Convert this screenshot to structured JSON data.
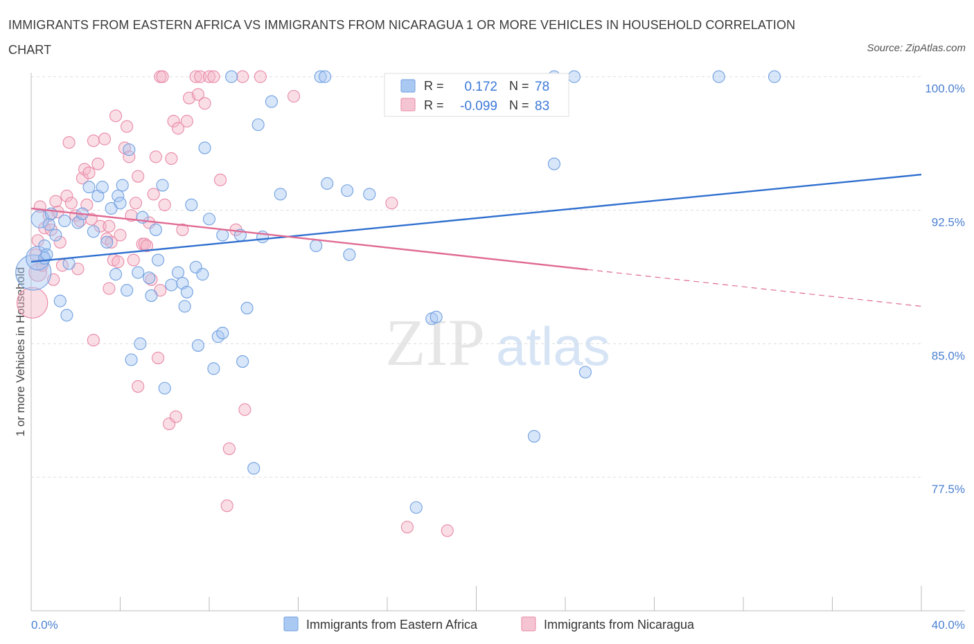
{
  "title": "IMMIGRANTS FROM EASTERN AFRICA VS IMMIGRANTS FROM NICARAGUA 1 OR MORE VEHICLES IN HOUSEHOLD CORRELATION CHART",
  "source": "Source: ZipAtlas.com",
  "watermark": {
    "zip": "ZIP",
    "atlas": "atlas"
  },
  "colors": {
    "blue_fill": "#a9c8f2",
    "blue_stroke": "#6f9fe0",
    "blue_line": "#2f6fcf",
    "pink_fill": "#f5b5c8",
    "pink_stroke": "#e888a6",
    "pink_line": "#e06a93",
    "tick_text": "#4a7fd0",
    "grid": "#dddddd"
  },
  "legend": {
    "rows": [
      {
        "r_label": "R =",
        "r_value": "0.172",
        "n_label": "N =",
        "n_value": "78",
        "color": "blue"
      },
      {
        "r_label": "R =",
        "r_value": "-0.099",
        "n_label": "N =",
        "n_value": "83",
        "color": "pink"
      }
    ]
  },
  "bottom_legend": [
    "Immigrants from Eastern Africa",
    "Immigrants from Nicaragua"
  ],
  "chart_data": {
    "type": "scatter",
    "title": "IMMIGRANTS FROM EASTERN AFRICA VS IMMIGRANTS FROM NICARAGUA 1 OR MORE VEHICLES IN HOUSEHOLD CORRELATION CHART",
    "xlabel": "",
    "ylabel": "1 or more Vehicles in Household",
    "xlim": [
      0,
      40
    ],
    "ylim": [
      70.0,
      101.0
    ],
    "x_tick_labels": [
      "0.0%",
      "40.0%"
    ],
    "y_ticks": [
      77.5,
      85.0,
      92.5,
      100.0
    ],
    "y_tick_labels": [
      "77.5%",
      "85.0%",
      "92.5%",
      "100.0%"
    ],
    "grid": true,
    "legend_position": "top-center",
    "series": [
      {
        "name": "Immigrants from Eastern Africa",
        "color": "blue",
        "trend": {
          "x": [
            0,
            40
          ],
          "y": [
            89.6,
            94.5
          ],
          "dashed_from": null
        },
        "points": [
          [
            0.1,
            89.0,
            3
          ],
          [
            0.3,
            89.8,
            2
          ],
          [
            0.4,
            92.0,
            1.5
          ],
          [
            0.6,
            90.5,
            1
          ],
          [
            0.6,
            89.8,
            1
          ],
          [
            0.8,
            91.7,
            1
          ],
          [
            0.9,
            92.3,
            1
          ],
          [
            1.1,
            91.1,
            1
          ],
          [
            1.3,
            87.4,
            1
          ],
          [
            1.6,
            86.6,
            1
          ],
          [
            1.7,
            89.5,
            1
          ],
          [
            1.5,
            91.9,
            1
          ],
          [
            2.1,
            91.8,
            1
          ],
          [
            2.3,
            92.3,
            1
          ],
          [
            2.6,
            93.8,
            1
          ],
          [
            2.8,
            91.3,
            1
          ],
          [
            3.0,
            93.3,
            1
          ],
          [
            3.2,
            93.8,
            1
          ],
          [
            3.4,
            90.7,
            1
          ],
          [
            3.6,
            92.6,
            1
          ],
          [
            3.8,
            88.9,
            1
          ],
          [
            3.9,
            93.3,
            1
          ],
          [
            4.0,
            92.9,
            1
          ],
          [
            4.1,
            93.9,
            1
          ],
          [
            4.3,
            88.0,
            1
          ],
          [
            4.4,
            95.9,
            1
          ],
          [
            4.5,
            84.1,
            1
          ],
          [
            4.8,
            89.0,
            1
          ],
          [
            4.9,
            85.0,
            1
          ],
          [
            5.0,
            92.1,
            1
          ],
          [
            5.3,
            88.7,
            1
          ],
          [
            5.4,
            87.7,
            1
          ],
          [
            5.6,
            91.4,
            1
          ],
          [
            5.7,
            89.7,
            1
          ],
          [
            5.9,
            93.9,
            1
          ],
          [
            6.0,
            82.5,
            1
          ],
          [
            6.3,
            88.3,
            1
          ],
          [
            6.6,
            89.0,
            1
          ],
          [
            6.8,
            88.4,
            1
          ],
          [
            6.9,
            87.1,
            1
          ],
          [
            7.0,
            87.9,
            1
          ],
          [
            7.2,
            92.8,
            1
          ],
          [
            7.4,
            89.3,
            1
          ],
          [
            7.5,
            84.9,
            1
          ],
          [
            7.7,
            88.9,
            1
          ],
          [
            7.8,
            96.0,
            1
          ],
          [
            8.0,
            92.0,
            1
          ],
          [
            8.2,
            83.6,
            1
          ],
          [
            8.4,
            85.4,
            1
          ],
          [
            8.6,
            85.6,
            1
          ],
          [
            8.6,
            91.1,
            1
          ],
          [
            9.0,
            100.0,
            1
          ],
          [
            9.4,
            91.1,
            1
          ],
          [
            9.5,
            84.0,
            1
          ],
          [
            9.7,
            87.0,
            1
          ],
          [
            10.0,
            78.0,
            1
          ],
          [
            10.2,
            97.3,
            1
          ],
          [
            10.4,
            91.0,
            1
          ],
          [
            10.8,
            98.6,
            1
          ],
          [
            11.2,
            93.4,
            1
          ],
          [
            12.8,
            90.5,
            1
          ],
          [
            13.0,
            100.0,
            1
          ],
          [
            13.2,
            100.0,
            1
          ],
          [
            13.3,
            94.0,
            1
          ],
          [
            14.2,
            93.6,
            1
          ],
          [
            14.3,
            90.0,
            1
          ],
          [
            15.2,
            93.4,
            1
          ],
          [
            17.3,
            75.8,
            1
          ],
          [
            18.0,
            86.4,
            1
          ],
          [
            18.2,
            86.5,
            1
          ],
          [
            22.6,
            79.8,
            1
          ],
          [
            23.5,
            95.1,
            1
          ],
          [
            23.5,
            100.0,
            1
          ],
          [
            24.4,
            100.0,
            1
          ],
          [
            24.9,
            83.4,
            1
          ],
          [
            30.9,
            100.0,
            1
          ],
          [
            33.4,
            100.0,
            1
          ],
          [
            0.7,
            90.0,
            1
          ]
        ]
      },
      {
        "name": "Immigrants from Nicaragua",
        "color": "pink",
        "trend": {
          "x": [
            0,
            40
          ],
          "y": [
            92.6,
            87.1
          ],
          "dashed_from": 25.0
        },
        "points": [
          [
            0.05,
            87.3,
            2.6
          ],
          [
            0.3,
            89.0,
            1.5
          ],
          [
            0.3,
            90.8,
            1
          ],
          [
            0.4,
            92.7,
            1
          ],
          [
            0.6,
            91.5,
            1
          ],
          [
            0.8,
            92.2,
            1
          ],
          [
            0.9,
            91.4,
            1
          ],
          [
            1.0,
            88.6,
            1
          ],
          [
            1.1,
            93.0,
            1
          ],
          [
            1.3,
            90.7,
            1
          ],
          [
            1.4,
            89.4,
            1
          ],
          [
            1.6,
            93.3,
            1
          ],
          [
            1.7,
            96.3,
            1
          ],
          [
            1.8,
            92.9,
            1
          ],
          [
            2.0,
            92.2,
            1
          ],
          [
            2.1,
            89.2,
            1
          ],
          [
            2.3,
            94.3,
            1
          ],
          [
            2.4,
            94.8,
            1
          ],
          [
            2.5,
            92.8,
            1
          ],
          [
            2.6,
            94.6,
            1
          ],
          [
            2.7,
            92.0,
            1
          ],
          [
            2.8,
            85.2,
            1
          ],
          [
            2.8,
            96.4,
            1
          ],
          [
            3.0,
            95.1,
            1
          ],
          [
            3.1,
            91.6,
            1
          ],
          [
            3.3,
            96.5,
            1
          ],
          [
            3.4,
            90.9,
            1
          ],
          [
            3.5,
            91.6,
            1
          ],
          [
            3.5,
            88.1,
            1
          ],
          [
            3.7,
            89.7,
            1
          ],
          [
            3.8,
            97.8,
            1
          ],
          [
            3.9,
            89.6,
            1
          ],
          [
            4.0,
            91.1,
            1
          ],
          [
            4.2,
            96.0,
            1
          ],
          [
            4.3,
            97.2,
            1
          ],
          [
            4.4,
            95.5,
            1
          ],
          [
            4.6,
            89.7,
            1
          ],
          [
            4.7,
            92.9,
            1
          ],
          [
            4.8,
            94.4,
            1
          ],
          [
            4.8,
            82.6,
            1
          ],
          [
            5.0,
            90.6,
            1
          ],
          [
            5.1,
            90.6,
            1
          ],
          [
            5.3,
            91.8,
            1
          ],
          [
            5.4,
            88.6,
            1
          ],
          [
            5.5,
            93.4,
            1
          ],
          [
            5.6,
            95.5,
            1
          ],
          [
            5.7,
            84.2,
            1
          ],
          [
            5.8,
            88.0,
            1
          ],
          [
            5.8,
            100.0,
            1
          ],
          [
            5.9,
            100.0,
            1
          ],
          [
            6.2,
            80.5,
            1
          ],
          [
            6.3,
            95.4,
            1
          ],
          [
            6.4,
            97.5,
            1
          ],
          [
            6.5,
            80.9,
            1
          ],
          [
            6.6,
            97.1,
            1
          ],
          [
            6.8,
            91.4,
            1
          ],
          [
            7.0,
            97.5,
            1
          ],
          [
            7.1,
            98.8,
            1
          ],
          [
            7.4,
            100.0,
            1
          ],
          [
            7.5,
            99.0,
            1
          ],
          [
            7.6,
            100.0,
            1
          ],
          [
            7.8,
            98.5,
            1
          ],
          [
            8.0,
            100.0,
            1
          ],
          [
            8.2,
            100.0,
            1
          ],
          [
            8.5,
            94.2,
            1
          ],
          [
            8.8,
            75.9,
            1
          ],
          [
            8.9,
            79.1,
            1
          ],
          [
            9.2,
            91.4,
            1
          ],
          [
            9.5,
            100.0,
            1
          ],
          [
            9.6,
            81.3,
            1
          ],
          [
            10.3,
            100.0,
            1
          ],
          [
            11.8,
            98.9,
            1
          ],
          [
            16.2,
            92.9,
            1
          ],
          [
            16.9,
            74.7,
            1
          ],
          [
            18.7,
            74.5,
            1
          ],
          [
            0.2,
            90.0,
            1
          ],
          [
            0.5,
            89.4,
            1
          ],
          [
            1.2,
            92.4,
            1
          ],
          [
            2.2,
            91.9,
            1
          ],
          [
            3.6,
            90.7,
            1
          ],
          [
            4.5,
            92.2,
            1
          ],
          [
            5.2,
            90.5,
            1
          ],
          [
            6.0,
            92.8,
            1
          ]
        ]
      }
    ]
  }
}
